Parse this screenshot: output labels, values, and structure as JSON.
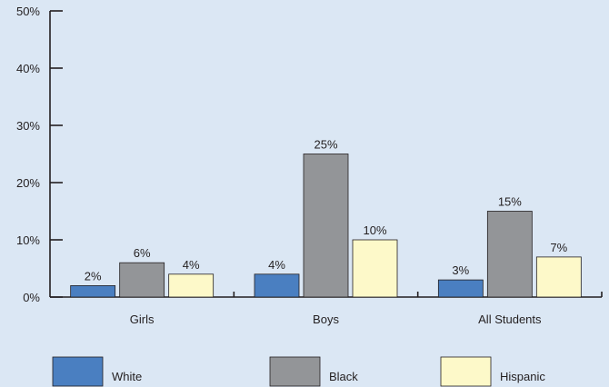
{
  "chart_data": {
    "type": "bar",
    "categories": [
      "Girls",
      "Boys",
      "All Students"
    ],
    "series": [
      {
        "name": "White",
        "values": [
          2,
          4,
          3
        ],
        "color": "#4a7fc1"
      },
      {
        "name": "Black",
        "values": [
          6,
          25,
          15
        ],
        "color": "#939598"
      },
      {
        "name": "Hispanic",
        "values": [
          4,
          10,
          7
        ],
        "color": "#fdf9c9"
      }
    ],
    "value_labels": [
      [
        "2%",
        "4%",
        "3%"
      ],
      [
        "6%",
        "25%",
        "15%"
      ],
      [
        "4%",
        "10%",
        "7%"
      ]
    ],
    "y_ticks": [
      0,
      10,
      20,
      30,
      40,
      50
    ],
    "y_tick_labels": [
      "0%",
      "10%",
      "20%",
      "30%",
      "40%",
      "50%"
    ],
    "ylim": [
      0,
      50
    ],
    "title": "",
    "xlabel": "",
    "ylabel": "",
    "grid": false,
    "legend_position": "bottom"
  }
}
